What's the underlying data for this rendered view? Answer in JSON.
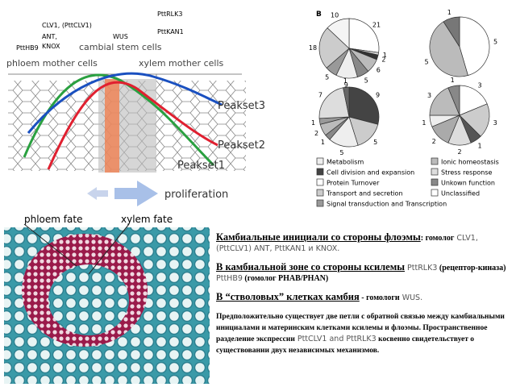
{
  "figure": {
    "gene_labels": [
      "PttHB9",
      "CLV1, (PttCLV1)",
      "ANT,",
      "KNOX",
      "WUS",
      "PttRLK3",
      "PttKAN1"
    ],
    "zone_labels": [
      "cambial stem cells",
      "phloem mother cells",
      "xylem mother cells"
    ],
    "peaksets": [
      "Peakset3",
      "Peakset2",
      "Peakset1"
    ],
    "proliferation": "proliferation",
    "fates": [
      "phloem fate",
      "xylem fate"
    ]
  },
  "pies": {
    "panel": "B",
    "charts": [
      {
        "values": [
          21,
          1,
          2,
          6,
          5,
          9,
          5,
          18,
          10
        ],
        "colors": [
          "#ffffff",
          "#d9d9d9",
          "#333333",
          "#bbbbbb",
          "#888888",
          "#eeeeee",
          "#999999",
          "#cccccc",
          "#f4f4f4"
        ]
      },
      {
        "values": [
          5,
          5,
          1
        ],
        "colors": [
          "#ffffff",
          "#bbbbbb",
          "#777777"
        ]
      },
      {
        "values": [
          9,
          5,
          5,
          1,
          2,
          1,
          7,
          1
        ],
        "colors": [
          "#444444",
          "#cccccc",
          "#eeeeee",
          "#888888",
          "#bbbbbb",
          "#999999",
          "#dddddd",
          "#666666"
        ]
      },
      {
        "values": [
          3,
          3,
          1,
          2,
          2,
          1,
          3,
          1
        ],
        "colors": [
          "#ffffff",
          "#cccccc",
          "#555555",
          "#dddddd",
          "#aaaaaa",
          "#eeeeee",
          "#bbbbbb",
          "#888888"
        ]
      }
    ],
    "legend": [
      "Metabolism",
      "Cell division and expansion",
      "Protein Turnover",
      "Transport and secretion",
      "Signal transduction and Transcription",
      "Ionic homeostasis",
      "Stress response",
      "Unkown function",
      "Unclassified"
    ],
    "legend_colors": [
      "#eeeeee",
      "#444444",
      "#ffffff",
      "#cccccc",
      "#999999",
      "#bbbbbb",
      "#dddddd",
      "#888888",
      "#ffffff"
    ]
  },
  "text": {
    "paragraphs": [
      {
        "parts": [
          "Камбиальные инициали со стороны флоэмы",
          ": гомолог",
          " CLV1, (PttCLV1) ANT, PttKAN1 и KNOX."
        ]
      },
      {
        "parts": [
          "В камбиальной зоне со стороны ксилемы",
          " PttRLK3",
          " (рецептор-киназа)",
          " PttHB9",
          " (гомолог PHAB/PHAN)"
        ]
      },
      {
        "parts": [
          "В “стволовых” клетках камбия",
          " - гомологи",
          " WUS."
        ]
      },
      {
        "parts": [
          "Предположительно существует две петли с обратной связью между камбиальными инициалами и материнским клетками ксилемы и флоэмы. Пространственное разделение экспрессии",
          " PttCLV1 and PttRLK3",
          " косвенно свидетельствует о существовании двух независимых механизмов."
        ]
      }
    ]
  }
}
